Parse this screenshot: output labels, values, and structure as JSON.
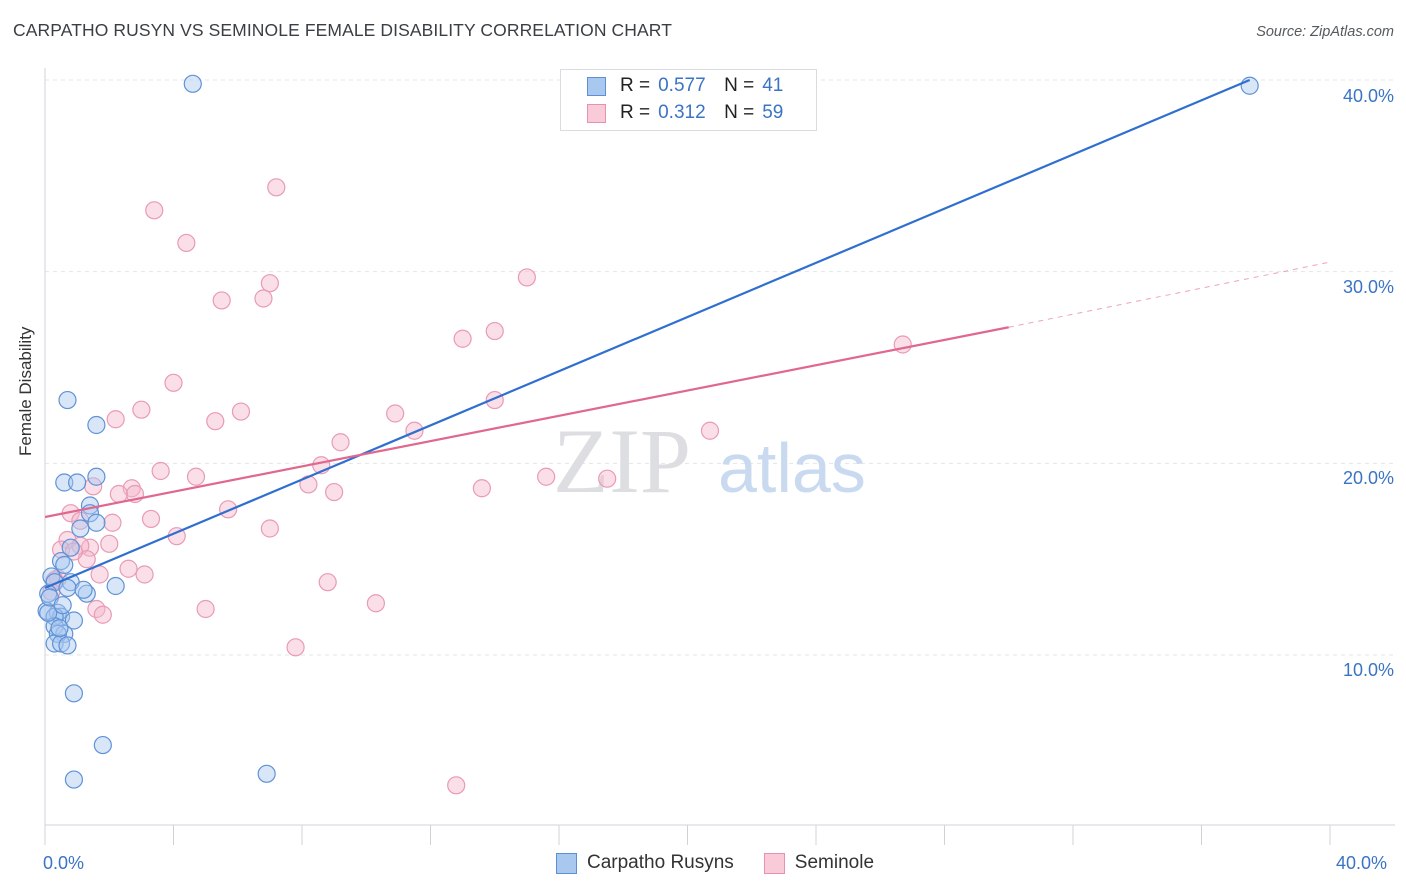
{
  "title": "CARPATHO RUSYN VS SEMINOLE FEMALE DISABILITY CORRELATION CHART",
  "source": "Source: ZipAtlas.com",
  "watermark": {
    "zip": "ZIP",
    "atlas": "atlas"
  },
  "colors": {
    "blue": "#3a74c4",
    "blue_fill": "#a9c8f0",
    "blue_line": "#2f6fd0",
    "pink_fill": "#f5b8cc",
    "pink_line": "#e0688e",
    "grid": "#e3e6ea"
  },
  "legend": {
    "r_label": "R =",
    "n_label": "N =",
    "series": [
      {
        "name": "Carpatho Rusyns",
        "r": "0.577",
        "n": "41"
      },
      {
        "name": "Seminole",
        "r": "0.312",
        "n": "59"
      }
    ]
  },
  "chart_data": {
    "type": "scatter",
    "title": "CARPATHO RUSYN VS SEMINOLE FEMALE DISABILITY CORRELATION CHART",
    "xlabel": "",
    "ylabel": "Female Disability",
    "xlim": [
      0,
      42
    ],
    "ylim": [
      1,
      42
    ],
    "x_tick_labels": [
      "0.0%",
      "40.0%"
    ],
    "y_ticks": [
      10,
      20,
      30,
      40
    ],
    "y_tick_labels": [
      "10.0%",
      "20.0%",
      "30.0%",
      "40.0%"
    ],
    "series": [
      {
        "name": "Carpatho Rusyns",
        "r": 0.577,
        "n": 41,
        "trend": {
          "x0": 0,
          "y0": 13.5,
          "x1": 37.5,
          "y1": 40.0
        },
        "points": [
          [
            4.6,
            39.8
          ],
          [
            37.5,
            39.7
          ],
          [
            0.7,
            23.3
          ],
          [
            1.6,
            22.0
          ],
          [
            0.6,
            19.0
          ],
          [
            1.0,
            19.0
          ],
          [
            1.6,
            19.3
          ],
          [
            1.4,
            17.8
          ],
          [
            1.4,
            17.4
          ],
          [
            1.6,
            16.9
          ],
          [
            1.1,
            16.6
          ],
          [
            0.8,
            15.6
          ],
          [
            0.5,
            14.9
          ],
          [
            0.6,
            14.7
          ],
          [
            0.2,
            14.1
          ],
          [
            0.3,
            13.8
          ],
          [
            0.8,
            13.8
          ],
          [
            0.7,
            13.5
          ],
          [
            1.3,
            13.2
          ],
          [
            2.2,
            13.6
          ],
          [
            0.1,
            13.2
          ],
          [
            0.05,
            12.3
          ],
          [
            0.4,
            12.2
          ],
          [
            0.5,
            12.0
          ],
          [
            0.3,
            12.0
          ],
          [
            0.9,
            11.8
          ],
          [
            0.3,
            11.5
          ],
          [
            0.6,
            11.1
          ],
          [
            0.4,
            11.1
          ],
          [
            0.3,
            10.6
          ],
          [
            0.5,
            10.6
          ],
          [
            0.7,
            10.5
          ],
          [
            0.9,
            8.0
          ],
          [
            1.8,
            5.3
          ],
          [
            0.9,
            3.5
          ],
          [
            6.9,
            3.8
          ],
          [
            0.1,
            12.2
          ],
          [
            0.15,
            13.0
          ],
          [
            0.45,
            11.4
          ],
          [
            0.55,
            12.6
          ],
          [
            1.2,
            13.4
          ]
        ]
      },
      {
        "name": "Seminole",
        "r": 0.312,
        "n": 59,
        "trend": {
          "x0": 0,
          "y0": 17.2,
          "x1": 30.0,
          "y1": 27.1,
          "dash_to_x": 40.0,
          "dash_to_y": 30.5
        },
        "points": [
          [
            7.2,
            34.4
          ],
          [
            3.4,
            33.2
          ],
          [
            4.4,
            31.5
          ],
          [
            15.0,
            29.7
          ],
          [
            7.0,
            29.4
          ],
          [
            5.5,
            28.5
          ],
          [
            6.8,
            28.6
          ],
          [
            14.0,
            26.9
          ],
          [
            13.0,
            26.5
          ],
          [
            26.7,
            26.2
          ],
          [
            4.0,
            24.2
          ],
          [
            14.0,
            23.3
          ],
          [
            3.0,
            22.8
          ],
          [
            6.1,
            22.7
          ],
          [
            10.9,
            22.6
          ],
          [
            2.2,
            22.3
          ],
          [
            5.3,
            22.2
          ],
          [
            11.5,
            21.7
          ],
          [
            20.7,
            21.7
          ],
          [
            9.2,
            21.1
          ],
          [
            8.6,
            19.9
          ],
          [
            3.6,
            19.6
          ],
          [
            4.7,
            19.3
          ],
          [
            15.6,
            19.3
          ],
          [
            17.5,
            19.2
          ],
          [
            8.2,
            18.9
          ],
          [
            2.7,
            18.7
          ],
          [
            2.8,
            18.4
          ],
          [
            9.0,
            18.5
          ],
          [
            13.6,
            18.7
          ],
          [
            2.3,
            18.4
          ],
          [
            1.5,
            18.8
          ],
          [
            0.8,
            17.4
          ],
          [
            1.1,
            17.0
          ],
          [
            5.7,
            17.6
          ],
          [
            3.3,
            17.1
          ],
          [
            2.1,
            16.9
          ],
          [
            1.4,
            15.6
          ],
          [
            7.0,
            16.6
          ],
          [
            4.1,
            16.2
          ],
          [
            0.7,
            16.0
          ],
          [
            2.0,
            15.8
          ],
          [
            1.1,
            15.7
          ],
          [
            0.5,
            15.5
          ],
          [
            1.3,
            15.0
          ],
          [
            2.6,
            14.5
          ],
          [
            1.7,
            14.2
          ],
          [
            3.1,
            14.2
          ],
          [
            0.4,
            14.0
          ],
          [
            8.8,
            13.8
          ],
          [
            0.2,
            13.3
          ],
          [
            10.3,
            12.7
          ],
          [
            1.6,
            12.4
          ],
          [
            5.0,
            12.4
          ],
          [
            1.8,
            12.1
          ],
          [
            7.8,
            10.4
          ],
          [
            12.8,
            3.2
          ],
          [
            0.3,
            13.9
          ],
          [
            0.9,
            15.4
          ]
        ]
      }
    ]
  }
}
